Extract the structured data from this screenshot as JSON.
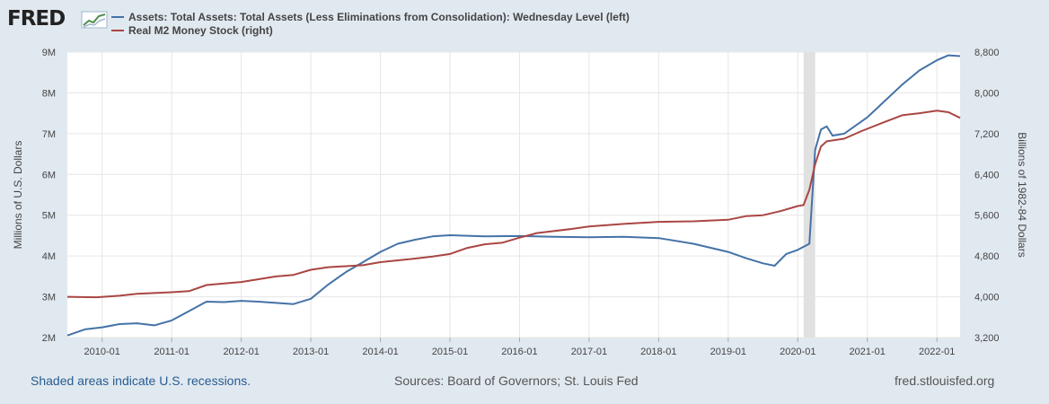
{
  "logo": {
    "text": "FRED"
  },
  "legend": [
    {
      "label": "Assets: Total Assets: Total Assets (Less Eliminations from Consolidation): Wednesday Level (left)",
      "color": "#4572a7"
    },
    {
      "label": "Real M2 Money Stock (right)",
      "color": "#aa4643"
    }
  ],
  "footer": {
    "recession_note": "Shaded areas indicate U.S. recessions.",
    "sources": "Sources: Board of Governors; St. Louis Fed",
    "site": "fred.stlouisfed.org"
  },
  "colors": {
    "background": "#e1e9f0",
    "plot": "#ffffff",
    "grid": "#e6e6e6",
    "recession": "#e1e1e1"
  },
  "chart_data": {
    "type": "line",
    "x_ticks": [
      "2010-01",
      "2011-01",
      "2012-01",
      "2013-01",
      "2014-01",
      "2015-01",
      "2016-01",
      "2017-01",
      "2018-01",
      "2019-01",
      "2020-01",
      "2021-01",
      "2022-01"
    ],
    "xlim": [
      "2009-07",
      "2022-05"
    ],
    "ylabel_left": "Millions of U.S. Dollars",
    "ylabel_right": "Billions of 1982-84 Dollars",
    "y_left_ticks": [
      "2M",
      "3M",
      "4M",
      "5M",
      "6M",
      "7M",
      "8M",
      "9M"
    ],
    "y_left_lim": [
      2000000,
      9000000
    ],
    "y_right_ticks": [
      "3,200",
      "4,000",
      "4,800",
      "5,600",
      "6,400",
      "7,200",
      "8,000",
      "8,800"
    ],
    "y_right_lim": [
      3200,
      8800
    ],
    "grid": true,
    "recessions": [
      {
        "start": "2020-02",
        "end": "2020-04"
      }
    ],
    "series": [
      {
        "axis": "left",
        "color": "#4572a7",
        "points": [
          [
            "2009-07",
            2050000
          ],
          [
            "2009-10",
            2200000
          ],
          [
            "2010-01",
            2250000
          ],
          [
            "2010-04",
            2330000
          ],
          [
            "2010-07",
            2350000
          ],
          [
            "2010-10",
            2300000
          ],
          [
            "2011-01",
            2420000
          ],
          [
            "2011-04",
            2650000
          ],
          [
            "2011-07",
            2880000
          ],
          [
            "2011-10",
            2870000
          ],
          [
            "2012-01",
            2900000
          ],
          [
            "2012-04",
            2880000
          ],
          [
            "2012-07",
            2850000
          ],
          [
            "2012-10",
            2820000
          ],
          [
            "2013-01",
            2950000
          ],
          [
            "2013-04",
            3300000
          ],
          [
            "2013-07",
            3600000
          ],
          [
            "2013-10",
            3850000
          ],
          [
            "2014-01",
            4100000
          ],
          [
            "2014-04",
            4300000
          ],
          [
            "2014-07",
            4400000
          ],
          [
            "2014-10",
            4480000
          ],
          [
            "2015-01",
            4510000
          ],
          [
            "2015-07",
            4480000
          ],
          [
            "2016-01",
            4490000
          ],
          [
            "2016-07",
            4470000
          ],
          [
            "2017-01",
            4460000
          ],
          [
            "2017-07",
            4470000
          ],
          [
            "2018-01",
            4440000
          ],
          [
            "2018-07",
            4300000
          ],
          [
            "2019-01",
            4100000
          ],
          [
            "2019-04",
            3950000
          ],
          [
            "2019-07",
            3820000
          ],
          [
            "2019-09",
            3760000
          ],
          [
            "2019-11",
            4050000
          ],
          [
            "2020-01",
            4150000
          ],
          [
            "2020-03",
            4300000
          ],
          [
            "2020-04",
            6600000
          ],
          [
            "2020-05",
            7100000
          ],
          [
            "2020-06",
            7180000
          ],
          [
            "2020-07",
            6950000
          ],
          [
            "2020-09",
            7000000
          ],
          [
            "2020-11",
            7200000
          ],
          [
            "2021-01",
            7400000
          ],
          [
            "2021-04",
            7800000
          ],
          [
            "2021-07",
            8200000
          ],
          [
            "2021-10",
            8550000
          ],
          [
            "2022-01",
            8800000
          ],
          [
            "2022-03",
            8920000
          ],
          [
            "2022-05",
            8900000
          ]
        ]
      },
      {
        "axis": "right",
        "color": "#aa4643",
        "points": [
          [
            "2009-07",
            4000
          ],
          [
            "2009-12",
            3990
          ],
          [
            "2010-04",
            4020
          ],
          [
            "2010-07",
            4060
          ],
          [
            "2011-01",
            4090
          ],
          [
            "2011-04",
            4110
          ],
          [
            "2011-07",
            4230
          ],
          [
            "2012-01",
            4290
          ],
          [
            "2012-07",
            4400
          ],
          [
            "2012-10",
            4430
          ],
          [
            "2013-01",
            4530
          ],
          [
            "2013-04",
            4580
          ],
          [
            "2013-10",
            4620
          ],
          [
            "2014-01",
            4680
          ],
          [
            "2014-07",
            4750
          ],
          [
            "2014-10",
            4790
          ],
          [
            "2015-01",
            4840
          ],
          [
            "2015-04",
            4960
          ],
          [
            "2015-07",
            5030
          ],
          [
            "2015-10",
            5060
          ],
          [
            "2016-01",
            5160
          ],
          [
            "2016-04",
            5250
          ],
          [
            "2016-10",
            5330
          ],
          [
            "2017-01",
            5380
          ],
          [
            "2017-07",
            5430
          ],
          [
            "2018-01",
            5470
          ],
          [
            "2018-07",
            5480
          ],
          [
            "2019-01",
            5510
          ],
          [
            "2019-04",
            5580
          ],
          [
            "2019-07",
            5600
          ],
          [
            "2019-10",
            5680
          ],
          [
            "2020-01",
            5780
          ],
          [
            "2020-02",
            5800
          ],
          [
            "2020-03",
            6100
          ],
          [
            "2020-04",
            6600
          ],
          [
            "2020-05",
            6950
          ],
          [
            "2020-06",
            7050
          ],
          [
            "2020-09",
            7100
          ],
          [
            "2020-12",
            7250
          ],
          [
            "2021-04",
            7430
          ],
          [
            "2021-07",
            7560
          ],
          [
            "2021-10",
            7600
          ],
          [
            "2022-01",
            7650
          ],
          [
            "2022-03",
            7620
          ],
          [
            "2022-05",
            7510
          ]
        ]
      }
    ]
  }
}
